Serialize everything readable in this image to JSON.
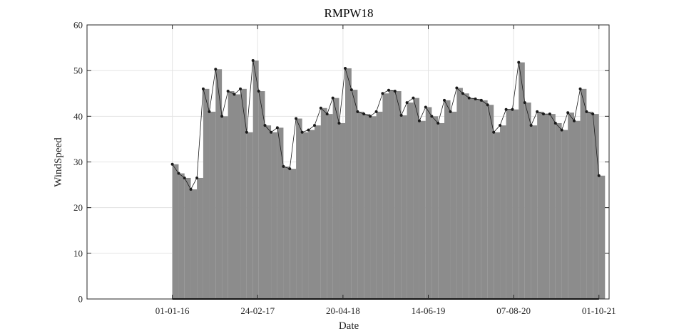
{
  "chart_data": {
    "type": "line",
    "title": "RMPW18",
    "xlabel": "Date",
    "ylabel": "WindSpeed",
    "x_tick_labels": [
      "01-01-16",
      "24-02-17",
      "20-04-18",
      "14-06-19",
      "07-08-20",
      "01-10-21"
    ],
    "x_ticks": [
      "2016-01-01",
      "2017-02-24",
      "2018-04-20",
      "2019-06-14",
      "2020-08-07",
      "2021-10-01"
    ],
    "xlim": [
      "2014-11-07",
      "2021-11-20"
    ],
    "y_ticks": [
      0,
      10,
      20,
      30,
      40,
      50,
      60
    ],
    "ylim": [
      0,
      60
    ],
    "grid": true,
    "series": [
      {
        "color": "#8c8c8c",
        "marker_color": "#1a1a1a",
        "x": [
          "2016-01-01",
          "2016-02-01",
          "2016-03-01",
          "2016-04-01",
          "2016-05-01",
          "2016-06-01",
          "2016-07-01",
          "2016-08-01",
          "2016-09-01",
          "2016-10-01",
          "2016-11-01",
          "2016-12-01",
          "2017-01-01",
          "2017-02-01",
          "2017-03-01",
          "2017-04-01",
          "2017-05-01",
          "2017-06-01",
          "2017-07-01",
          "2017-08-01",
          "2017-09-01",
          "2017-10-01",
          "2017-11-01",
          "2017-12-01",
          "2018-01-01",
          "2018-02-01",
          "2018-03-01",
          "2018-04-01",
          "2018-05-01",
          "2018-06-01",
          "2018-07-01",
          "2018-08-01",
          "2018-09-01",
          "2018-10-01",
          "2018-11-01",
          "2018-12-01",
          "2019-01-01",
          "2019-02-01",
          "2019-03-01",
          "2019-04-01",
          "2019-05-01",
          "2019-06-01",
          "2019-07-01",
          "2019-08-01",
          "2019-09-01",
          "2019-10-01",
          "2019-11-01",
          "2019-12-01",
          "2020-01-01",
          "2020-02-01",
          "2020-03-01",
          "2020-04-01",
          "2020-05-01",
          "2020-06-01",
          "2020-07-01",
          "2020-08-01",
          "2020-09-01",
          "2020-10-01",
          "2020-11-01",
          "2020-12-01",
          "2021-01-01",
          "2021-02-01",
          "2021-03-01",
          "2021-04-01",
          "2021-05-01",
          "2021-06-01",
          "2021-07-01",
          "2021-08-01",
          "2021-09-01",
          "2021-10-01"
        ],
        "max": [
          29.5,
          27.5,
          26.5,
          24,
          26.5,
          46,
          41,
          50.3,
          40,
          45.5,
          44.8,
          46,
          36.5,
          52.2,
          45.5,
          38,
          36.5,
          37.5,
          29,
          28.5,
          39.5,
          36.5,
          37,
          38,
          41.8,
          40.5,
          44,
          38.5,
          50.5,
          45.8,
          41,
          40.5,
          40,
          41,
          45,
          45.7,
          45.5,
          40.2,
          43,
          44,
          39,
          42,
          40,
          38.5,
          43.5,
          41,
          46.2,
          45,
          44,
          43.8,
          43.5,
          42.5,
          36.5,
          38,
          41.5,
          41.5,
          51.8,
          43,
          38,
          41,
          40.5,
          40.5,
          38.5,
          37,
          40.8,
          39,
          46,
          41,
          40.5,
          27
        ],
        "min": [
          0,
          0,
          0,
          0,
          0,
          0,
          0,
          0,
          0,
          0,
          0,
          0,
          0,
          0,
          0,
          0,
          0,
          0,
          0,
          0,
          0,
          0,
          0,
          0,
          0,
          0,
          0,
          0,
          0,
          0,
          0,
          0,
          0,
          0,
          0,
          0,
          0,
          0,
          0,
          0,
          0,
          0,
          0,
          0,
          0,
          0,
          0,
          0,
          0,
          0,
          0,
          0,
          0,
          0,
          0,
          0,
          0,
          0,
          0,
          0,
          0,
          0,
          0,
          0,
          0,
          0,
          0,
          0,
          0,
          0
        ]
      }
    ]
  }
}
